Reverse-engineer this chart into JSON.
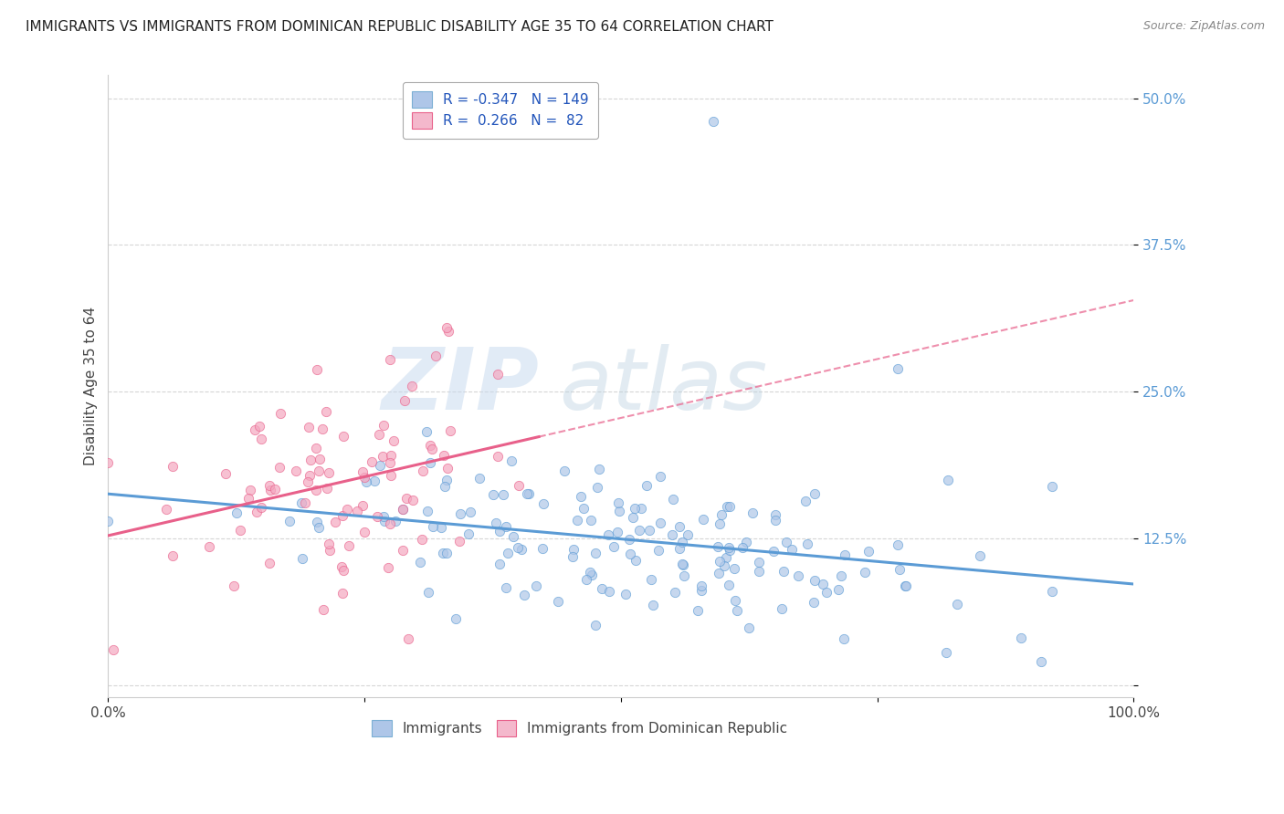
{
  "title": "IMMIGRANTS VS IMMIGRANTS FROM DOMINICAN REPUBLIC DISABILITY AGE 35 TO 64 CORRELATION CHART",
  "source": "Source: ZipAtlas.com",
  "ylabel": "Disability Age 35 to 64",
  "yticks": [
    0.0,
    0.125,
    0.25,
    0.375,
    0.5
  ],
  "ytick_labels": [
    "",
    "12.5%",
    "25.0%",
    "37.5%",
    "50.0%"
  ],
  "xlim": [
    0.0,
    1.0
  ],
  "ylim": [
    -0.01,
    0.52
  ],
  "watermark_zip": "ZIP",
  "watermark_atlas": "atlas",
  "series1_color": "#5b9bd5",
  "series1_face": "#aec6e8",
  "series2_color": "#e8608a",
  "series2_face": "#f4a7c0",
  "series1_R": -0.347,
  "series1_N": 149,
  "series2_R": 0.266,
  "series2_N": 82,
  "title_fontsize": 11,
  "tick_color_right": "#5b9bd5",
  "background_color": "#ffffff",
  "grid_color": "#cccccc",
  "legend_label_color": "#2255bb"
}
